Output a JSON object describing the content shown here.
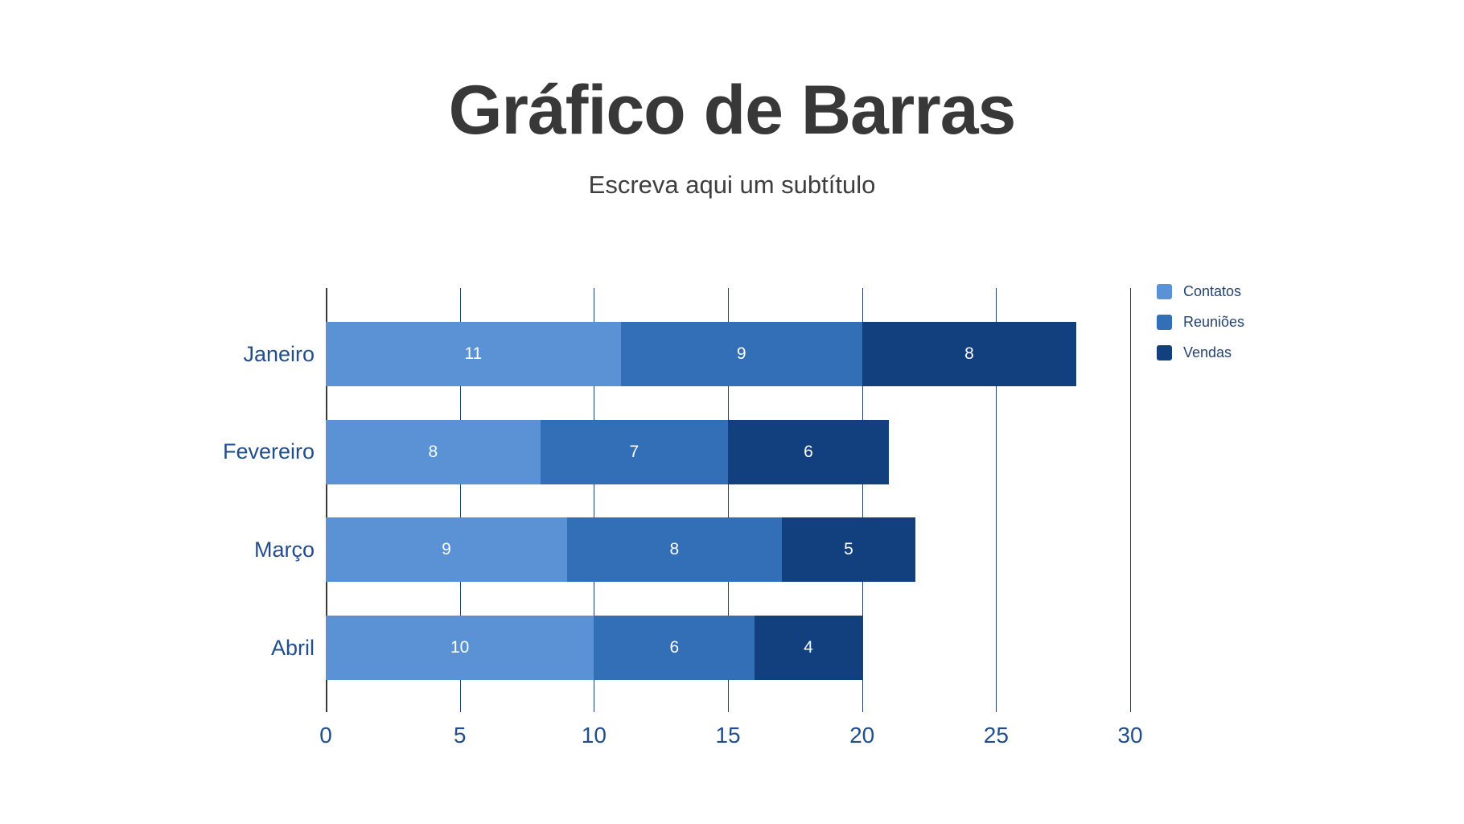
{
  "title": "Gráfico de Barras",
  "subtitle": "Escreva aqui um subtítulo",
  "chart_data": {
    "type": "bar",
    "orientation": "horizontal",
    "stacked": true,
    "title": "Gráfico de Barras",
    "subtitle": "Escreva aqui um subtítulo",
    "categories": [
      "Janeiro",
      "Fevereiro",
      "Março",
      "Abril"
    ],
    "series": [
      {
        "name": "Contatos",
        "color": "#5B92D5",
        "values": [
          11,
          8,
          9,
          10
        ]
      },
      {
        "name": "Reuniões",
        "color": "#336FB6",
        "values": [
          9,
          7,
          8,
          6
        ]
      },
      {
        "name": "Vendas",
        "color": "#123F7E",
        "values": [
          8,
          6,
          5,
          4
        ]
      }
    ],
    "totals": [
      28,
      21,
      22,
      20
    ],
    "xlim": [
      0,
      30
    ],
    "xticks": [
      0,
      5,
      10,
      15,
      20,
      25,
      30
    ],
    "grid": true,
    "legend_position": "right",
    "value_labels_position": "inside-center",
    "value_label_color": "#FFFFFF",
    "axis_label_color": "#214E8C",
    "gridline_color": "#24416F",
    "zero_line_color": "#3C3C3C",
    "title_color": "#383838",
    "background_color": "#FFFFFF"
  }
}
